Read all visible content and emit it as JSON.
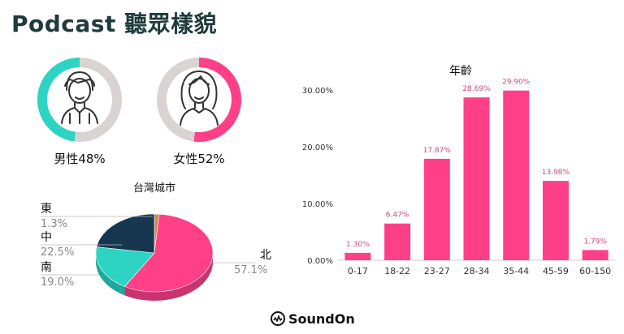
{
  "page": {
    "title": "Podcast 聽眾樣貌"
  },
  "colors": {
    "male": "#2dd4c4",
    "female": "#ff4088",
    "ring_bg": "#d9d4d2",
    "navy": "#16374f",
    "brown": "#c98a4e",
    "bar": "#ff4088"
  },
  "icons": {
    "male": "man-avatar-icon",
    "female": "woman-avatar-icon",
    "brand": "soundon-logo-icon"
  },
  "gender": {
    "male": {
      "label": "男性48%",
      "percent": 48
    },
    "female": {
      "label": "女性52%",
      "percent": 52
    }
  },
  "footer": {
    "brand": "SoundOn"
  },
  "chart_data": [
    {
      "type": "pie",
      "title": "台灣城市",
      "slices": [
        {
          "name": "北",
          "value": 57.1,
          "label": "57.1%"
        },
        {
          "name": "南",
          "value": 19.0,
          "label": "19.0%"
        },
        {
          "name": "中",
          "value": 22.5,
          "label": "22.5%"
        },
        {
          "name": "東",
          "value": 1.3,
          "label": "1.3%"
        }
      ],
      "three_d": true
    },
    {
      "type": "bar",
      "title": "年齡",
      "categories": [
        "0-17",
        "18-22",
        "23-27",
        "28-34",
        "35-44",
        "45-59",
        "60-150"
      ],
      "values": [
        1.3,
        6.47,
        17.87,
        28.69,
        29.9,
        13.98,
        1.79
      ],
      "value_labels": [
        "1.30%",
        "6.47%",
        "17.87%",
        "28.69%",
        "29.90%",
        "13.98%",
        "1.79%"
      ],
      "yticks": [
        "0.00%",
        "10.00%",
        "20.00%",
        "30.00%"
      ],
      "ylim": [
        0,
        33
      ],
      "grid": false
    }
  ]
}
